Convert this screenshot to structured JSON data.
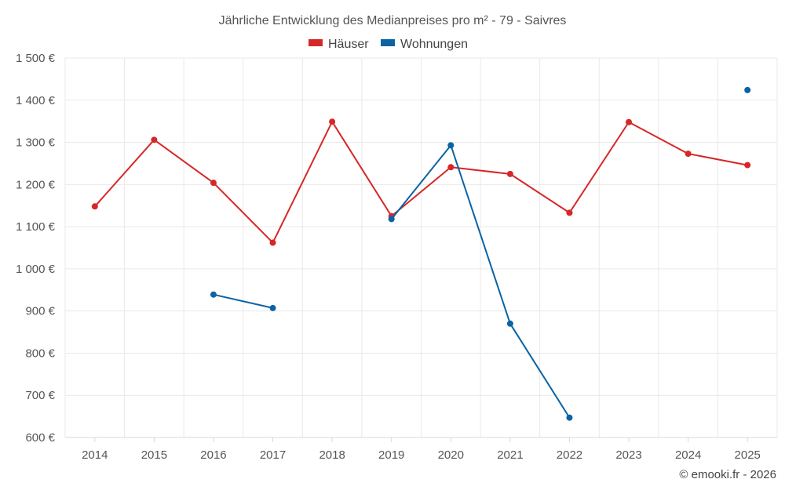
{
  "chart_data": {
    "type": "line",
    "title": "Jährliche Entwicklung des Medianpreises pro m² - 79 - Saivres",
    "categories": [
      "2014",
      "2015",
      "2016",
      "2017",
      "2018",
      "2019",
      "2020",
      "2021",
      "2022",
      "2023",
      "2024",
      "2025"
    ],
    "series": [
      {
        "name": "Häuser",
        "color": "#d62728",
        "values": [
          1148,
          1306,
          1204,
          1062,
          1349,
          1125,
          1241,
          1225,
          1133,
          1348,
          1273,
          1246
        ]
      },
      {
        "name": "Wohnungen",
        "color": "#0b63a3",
        "values": [
          null,
          null,
          939,
          907,
          null,
          1118,
          1293,
          870,
          647,
          null,
          null,
          1424
        ]
      }
    ],
    "ylim": [
      600,
      1500
    ],
    "yticks": [
      600,
      700,
      800,
      900,
      1000,
      1100,
      1200,
      1300,
      1400,
      1500
    ],
    "ytick_labels": [
      "600 €",
      "700 €",
      "800 €",
      "900 €",
      "1 000 €",
      "1 100 €",
      "1 200 €",
      "1 300 €",
      "1 400 €",
      "1 500 €"
    ],
    "grid": true,
    "legend_position": "top-center",
    "credit": "© emooki.fr - 2026"
  }
}
